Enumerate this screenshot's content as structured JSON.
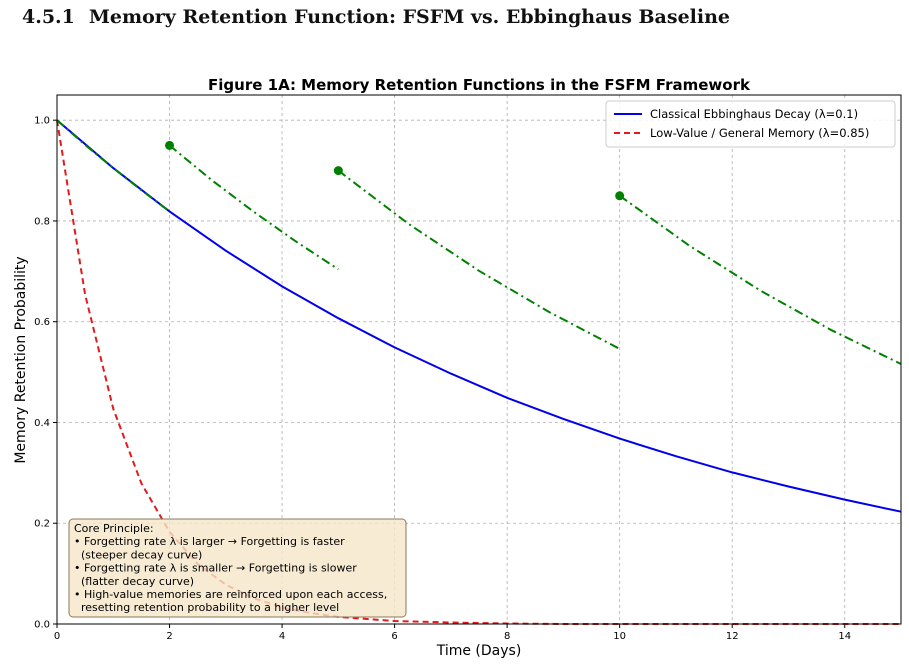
{
  "page": {
    "section_number": "4.5.1",
    "section_title": "Memory Retention Function: FSFM vs. Ebbinghaus Baseline"
  },
  "chart_data": {
    "type": "line",
    "title": "Figure 1A: Memory Retention Functions in the FSFM Framework",
    "xlabel": "Time (Days)",
    "ylabel": "Memory Retention Probability",
    "xlim": [
      0,
      15
    ],
    "ylim": [
      0,
      1.05
    ],
    "x_ticks": [
      0,
      2,
      4,
      6,
      8,
      10,
      12,
      14
    ],
    "y_ticks": [
      0.0,
      0.2,
      0.4,
      0.6,
      0.8,
      1.0
    ],
    "grid": true,
    "legend_position": "top-right",
    "series": [
      {
        "name": "Classical Ebbinghaus Decay (λ=0.1)",
        "color": "#0000ee",
        "style": "solid",
        "x": [
          0,
          1,
          2,
          3,
          4,
          5,
          6,
          7,
          8,
          9,
          10,
          11,
          12,
          13,
          14,
          15
        ],
        "y": [
          1.0,
          0.905,
          0.819,
          0.741,
          0.67,
          0.607,
          0.549,
          0.497,
          0.449,
          0.407,
          0.368,
          0.333,
          0.301,
          0.273,
          0.247,
          0.223
        ]
      },
      {
        "name": "Low-Value / General Memory (λ=0.85)",
        "color": "#e31a1c",
        "style": "dashed",
        "x": [
          0,
          0.5,
          1,
          1.5,
          2,
          2.5,
          3,
          3.5,
          4,
          4.5,
          5,
          6,
          7,
          8,
          9,
          10,
          11,
          12,
          13,
          14,
          15
        ],
        "y": [
          1.0,
          0.654,
          0.427,
          0.279,
          0.183,
          0.119,
          0.078,
          0.051,
          0.033,
          0.022,
          0.014,
          0.006,
          0.003,
          0.001,
          0.0,
          0.0,
          0.0,
          0.0,
          0.0,
          0.0,
          0.0
        ]
      },
      {
        "color": "#008000",
        "style": "dashdot",
        "x": [
          0,
          0.5,
          1,
          1.5,
          2
        ],
        "y": [
          1.0,
          0.951,
          0.905,
          0.861,
          0.819
        ]
      },
      {
        "color": "#008000",
        "style": "dashdot",
        "marker_start": true,
        "x": [
          2,
          2.75,
          3.5,
          4.25,
          5
        ],
        "y": [
          0.95,
          0.881,
          0.818,
          0.759,
          0.704
        ]
      },
      {
        "color": "#008000",
        "style": "dashdot",
        "marker_start": true,
        "x": [
          5,
          6.25,
          7.5,
          8.75,
          10
        ],
        "y": [
          0.9,
          0.794,
          0.701,
          0.619,
          0.546
        ]
      },
      {
        "color": "#008000",
        "style": "dashdot",
        "marker_start": true,
        "x": [
          10,
          11.25,
          12.5,
          13.75,
          15
        ],
        "y": [
          0.85,
          0.75,
          0.662,
          0.584,
          0.516
        ]
      }
    ],
    "annotation": {
      "lines": [
        "Core Principle:",
        "• Forgetting rate λ is larger → Forgetting is faster",
        "  (steeper decay curve)",
        "• Forgetting rate λ is smaller → Forgetting is slower",
        "  (flatter decay curve)",
        "• High-value memories are reinforced upon each access,",
        "  resetting retention probability to a higher level"
      ],
      "background": "#f5e6c8",
      "border": "#8a7a5a"
    }
  }
}
